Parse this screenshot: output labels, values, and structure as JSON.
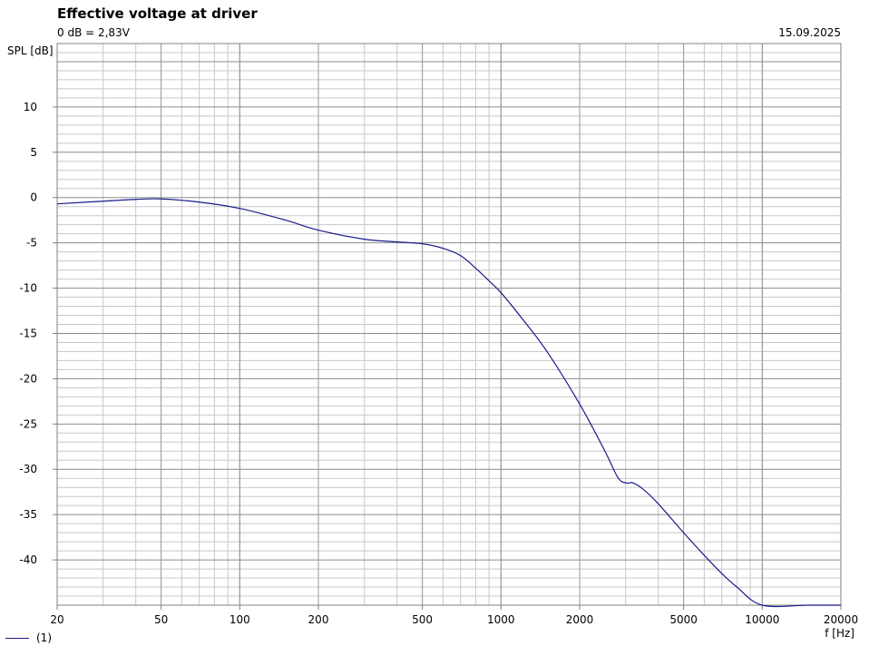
{
  "header": {
    "title": "Effective voltage at driver",
    "subtitle": "0 dB = 2,83V",
    "date": "15.09.2025"
  },
  "chart_data": {
    "type": "line",
    "title": "Effective voltage at driver",
    "subtitle": "0 dB = 2,83V",
    "xlabel": "f [Hz]",
    "ylabel": "SPL [dB]",
    "xscale": "log",
    "xlim": [
      20,
      20000
    ],
    "ylim": [
      -45,
      17
    ],
    "grid": true,
    "x_ticks": [
      20,
      50,
      100,
      200,
      500,
      1000,
      2000,
      5000,
      10000,
      20000
    ],
    "x_tick_labels": [
      "20",
      "50",
      "100",
      "200",
      "500",
      "1000",
      "2000",
      "5000",
      "10000",
      "20000"
    ],
    "y_ticks": [
      10,
      5,
      0,
      -5,
      -10,
      -15,
      -20,
      -25,
      -30,
      -35,
      -40
    ],
    "y_tick_labels": [
      "10",
      "5",
      "0",
      "-5",
      "-10",
      "-15",
      "-20",
      "-25",
      "-30",
      "-35",
      "-40"
    ],
    "legend_position": "bottom-left",
    "series": [
      {
        "name": "(1)",
        "color": "#1a1a8c",
        "x": [
          20,
          30,
          40,
          50,
          70,
          100,
          150,
          200,
          300,
          400,
          500,
          600,
          700,
          800,
          900,
          1000,
          1200,
          1500,
          2000,
          2500,
          2800,
          3000,
          3200,
          3500,
          4000,
          5000,
          6000,
          7000,
          8000,
          10000,
          15000,
          20000
        ],
        "y": [
          -0.7,
          -0.4,
          -0.2,
          -0.15,
          -0.5,
          -1.2,
          -2.5,
          -3.6,
          -4.6,
          -4.9,
          -5.1,
          -5.6,
          -6.4,
          -7.8,
          -9.2,
          -10.5,
          -13.3,
          -17.0,
          -22.8,
          -28.0,
          -30.9,
          -31.5,
          -31.5,
          -32.2,
          -33.8,
          -37.0,
          -39.5,
          -41.5,
          -43.0,
          -45.0,
          -45.0,
          -45.0
        ]
      }
    ]
  }
}
